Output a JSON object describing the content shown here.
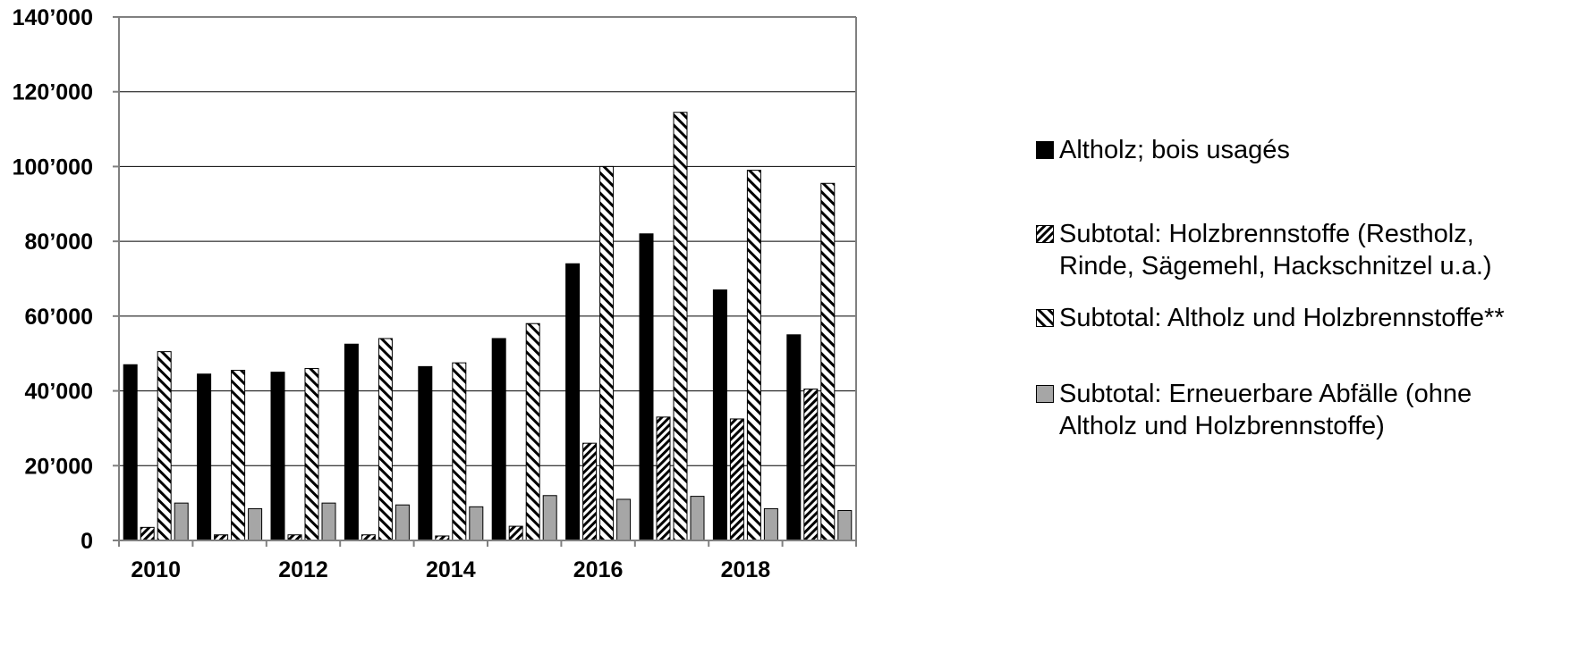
{
  "chart_data": {
    "type": "bar",
    "title": "",
    "xlabel": "",
    "ylabel": "",
    "categories": [
      "2010",
      "2011",
      "2012",
      "2013",
      "2014",
      "2015",
      "2016",
      "2017",
      "2018",
      "2019"
    ],
    "x_tick_labels": [
      "2010",
      "",
      "2012",
      "",
      "2014",
      "",
      "2016",
      "",
      "2018",
      ""
    ],
    "y_tick_labels": [
      "0",
      "20’000",
      "40’000",
      "60’000",
      "80’000",
      "100’000",
      "120’000",
      "140’000"
    ],
    "ylim": [
      0,
      140000
    ],
    "grid": "horizontal",
    "legend_position": "right",
    "series": [
      {
        "name": "Altholz; bois usagés",
        "fill": "solid-black",
        "values": [
          47000,
          44500,
          45000,
          52500,
          46500,
          54000,
          74000,
          82000,
          67000,
          55000
        ]
      },
      {
        "name": "Subtotal: Holzbrennstoffe (Restholz,\nRinde, Sägemehl, Hackschnitzel u.a.)",
        "fill": "dense-diagonal-hatch",
        "values": [
          3500,
          1500,
          1500,
          1500,
          1200,
          3800,
          26000,
          33000,
          32500,
          40500
        ]
      },
      {
        "name": "Subtotal: Altholz und Holzbrennstoffe**",
        "fill": "wide-diagonal-hatch",
        "values": [
          50500,
          45500,
          46000,
          54000,
          47500,
          58000,
          100000,
          114500,
          99000,
          95500
        ]
      },
      {
        "name": "Subtotal: Erneuerbare Abfälle (ohne\nAltholz und Holzbrennstoffe)",
        "fill": "solid-gray",
        "values": [
          10000,
          8500,
          10000,
          9500,
          9000,
          12000,
          11000,
          11800,
          8500,
          8000
        ]
      }
    ],
    "colors": {
      "axis": "#808080",
      "gridline": "#000000",
      "bar_black": "#000000",
      "bar_gray": "#a6a6a6",
      "text": "#000000"
    }
  }
}
